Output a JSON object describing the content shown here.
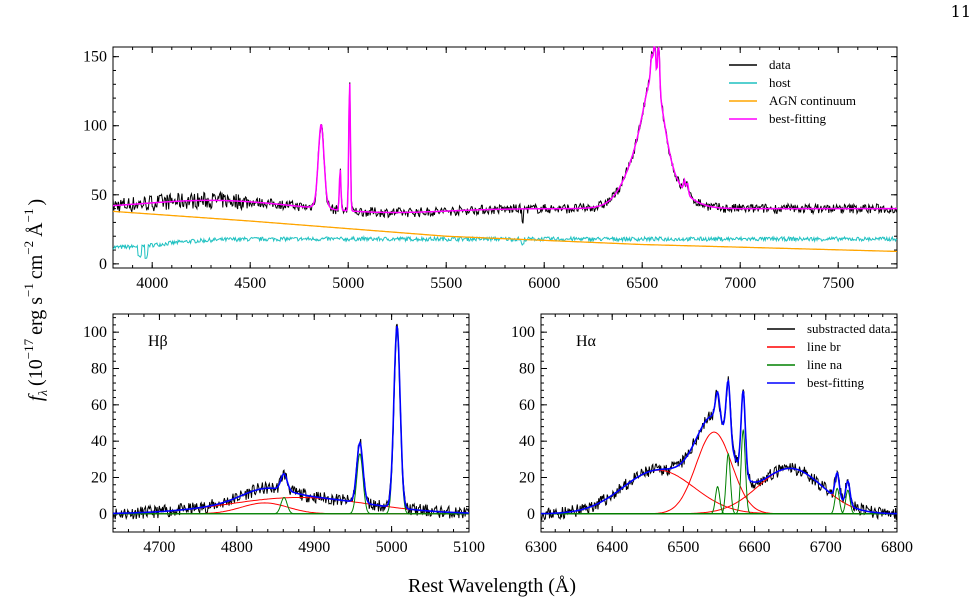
{
  "page": {
    "number": "11"
  },
  "figure": {
    "ylabel_f": "f",
    "ylabel_lambda": "λ",
    "ylabel_units": "(10",
    "ylabel_exp1": "−17",
    "ylabel_erg": "erg s",
    "ylabel_exp2": "−1",
    "ylabel_cm": "cm",
    "ylabel_exp3": "−2",
    "ylabel_A": "Å",
    "ylabel_exp4": "−1",
    "ylabel_close": ")",
    "xlabel": "Rest Wavelength (Å)"
  },
  "chart_data": [
    {
      "type": "line",
      "id": "top",
      "xlim": [
        3800,
        7800
      ],
      "ylim": [
        -3,
        157
      ],
      "xticks": [
        4000,
        4500,
        5000,
        5500,
        6000,
        6500,
        7000,
        7500
      ],
      "yticks": [
        0,
        50,
        100,
        150
      ],
      "legend": {
        "placement": "top-right",
        "entries": [
          {
            "label": "data",
            "color": "#000000"
          },
          {
            "label": "host",
            "color": "#1fc1c1"
          },
          {
            "label": "AGN continuum",
            "color": "#ffa500"
          },
          {
            "label": "best-fitting",
            "color": "#ff00ff"
          }
        ]
      },
      "continuum": {
        "points": [
          [
            3800,
            38
          ],
          [
            4500,
            31
          ],
          [
            5500,
            20
          ],
          [
            6500,
            14
          ],
          [
            7800,
            9
          ]
        ]
      },
      "host": {
        "level": 18
      },
      "model": {
        "base": 40,
        "gaussians": [
          [
            4862,
            55,
            14
          ],
          [
            4862,
            6,
            25
          ],
          [
            4959,
            30,
            4
          ],
          [
            5007,
            95,
            4
          ],
          [
            6563,
            45,
            45
          ],
          [
            6520,
            30,
            80
          ],
          [
            6563,
            25,
            120
          ],
          [
            6548,
            15,
            5
          ],
          [
            6563,
            30,
            5
          ],
          [
            6584,
            35,
            5
          ],
          [
            6716,
            8,
            5
          ],
          [
            6731,
            8,
            5
          ]
        ]
      },
      "series": [
        {
          "name": "data",
          "color": "#000000"
        },
        {
          "name": "host",
          "color": "#1fc1c1"
        },
        {
          "name": "AGN continuum",
          "color": "#ffa500"
        },
        {
          "name": "best-fitting",
          "color": "#ff00ff"
        }
      ]
    },
    {
      "type": "line",
      "id": "hbeta",
      "panel_label": "Hβ",
      "xlim": [
        4640,
        5100
      ],
      "ylim": [
        -10,
        110
      ],
      "xticks": [
        4700,
        4800,
        4900,
        5000,
        5100
      ],
      "yticks": [
        0,
        20,
        40,
        60,
        80,
        100
      ],
      "broad": [
        [
          4836,
          6,
          30
        ],
        [
          4880,
          9,
          90
        ]
      ],
      "narrow": [
        [
          4861,
          9,
          4
        ],
        [
          4959,
          33,
          4
        ],
        [
          5007,
          100,
          4
        ]
      ],
      "series": [
        {
          "name": "substracted data",
          "color": "#000000"
        },
        {
          "name": "line br",
          "color": "#ff0000"
        },
        {
          "name": "line na",
          "color": "#008000"
        },
        {
          "name": "best-fitting",
          "color": "#0000ff"
        }
      ]
    },
    {
      "type": "line",
      "id": "halpha",
      "panel_label": "Hα",
      "xlim": [
        6300,
        6800
      ],
      "ylim": [
        -10,
        110
      ],
      "xticks": [
        6300,
        6400,
        6500,
        6600,
        6700,
        6800
      ],
      "yticks": [
        0,
        20,
        40,
        60,
        80,
        100
      ],
      "legend": {
        "placement": "top-right",
        "entries": [
          {
            "label": "substracted data",
            "color": "#000000"
          },
          {
            "label": "line br",
            "color": "#ff0000"
          },
          {
            "label": "line na",
            "color": "#008000"
          },
          {
            "label": "best-fitting",
            "color": "#0000ff"
          }
        ]
      },
      "broad": [
        [
          6465,
          24,
          50
        ],
        [
          6543,
          45,
          25
        ],
        [
          6650,
          25,
          45
        ]
      ],
      "narrow": [
        [
          6548,
          15,
          3
        ],
        [
          6563,
          33,
          3
        ],
        [
          6584,
          46,
          3
        ],
        [
          6716,
          14,
          3
        ],
        [
          6731,
          13,
          3
        ]
      ],
      "series": [
        {
          "name": "substracted data",
          "color": "#000000"
        },
        {
          "name": "line br",
          "color": "#ff0000"
        },
        {
          "name": "line na",
          "color": "#008000"
        },
        {
          "name": "best-fitting",
          "color": "#0000ff"
        }
      ]
    }
  ]
}
